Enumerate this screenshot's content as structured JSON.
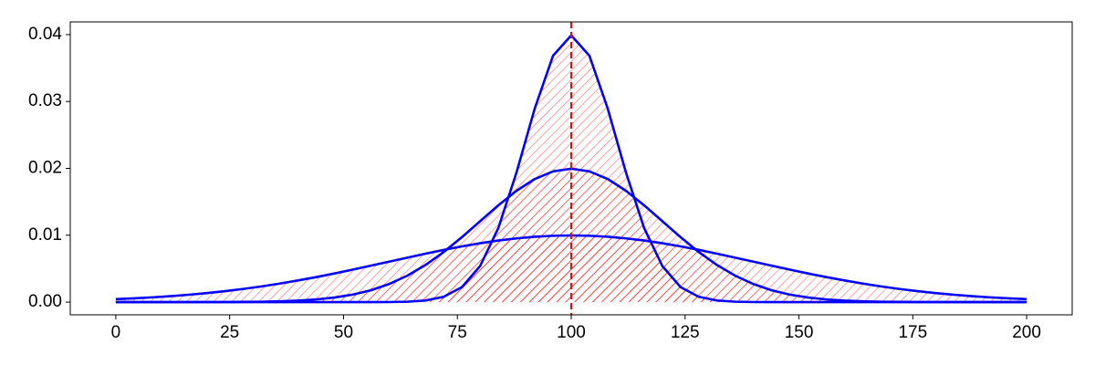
{
  "chart_data": {
    "type": "line",
    "x": [
      0,
      4,
      8,
      12,
      16,
      20,
      24,
      28,
      32,
      36,
      40,
      44,
      48,
      52,
      56,
      60,
      64,
      68,
      72,
      76,
      80,
      84,
      88,
      92,
      96,
      100,
      104,
      108,
      112,
      116,
      120,
      124,
      128,
      132,
      136,
      140,
      144,
      148,
      152,
      156,
      160,
      164,
      168,
      172,
      176,
      180,
      184,
      188,
      192,
      196,
      200
    ],
    "series": [
      {
        "color": "#0000ff",
        "values": [
          0,
          0,
          0,
          0,
          0,
          0,
          0,
          0,
          0,
          0,
          0,
          0,
          0,
          0,
          0,
          1e-05,
          6e-05,
          0.00024,
          0.00079,
          0.00224,
          0.0054,
          0.01109,
          0.01942,
          0.02897,
          0.03683,
          0.03989,
          0.03683,
          0.02897,
          0.01942,
          0.01109,
          0.0054,
          0.00224,
          0.00079,
          0.00024,
          6e-05,
          1e-05,
          0,
          0,
          0,
          0,
          0,
          0,
          0,
          0,
          0,
          0,
          0,
          0,
          0,
          0,
          0
        ]
      },
      {
        "color": "#0000ff",
        "values": [
          0,
          0,
          0,
          0,
          0,
          1e-05,
          1e-05,
          3e-05,
          6e-05,
          0.00012,
          0.00022,
          0.0004,
          0.00068,
          0.00112,
          0.00177,
          0.0027,
          0.00395,
          0.00555,
          0.00749,
          0.00971,
          0.0121,
          0.01448,
          0.01666,
          0.01841,
          0.01955,
          0.01995,
          0.01955,
          0.01841,
          0.01666,
          0.01448,
          0.0121,
          0.00971,
          0.00749,
          0.00555,
          0.00395,
          0.0027,
          0.00177,
          0.00112,
          0.00068,
          0.0004,
          0.00022,
          0.00012,
          6e-05,
          3e-05,
          1e-05,
          1e-05,
          0,
          0,
          0,
          0,
          0
        ]
      },
      {
        "color": "#0000ff",
        "values": [
          0.00044,
          0.00056,
          0.00071,
          0.00089,
          0.0011,
          0.00135,
          0.00164,
          0.00197,
          0.00235,
          0.00277,
          0.00324,
          0.00374,
          0.00428,
          0.00485,
          0.00545,
          0.00605,
          0.00665,
          0.00724,
          0.00781,
          0.00833,
          0.0088,
          0.00921,
          0.00953,
          0.00978,
          0.00992,
          0.00997,
          0.00992,
          0.00978,
          0.00953,
          0.00921,
          0.0088,
          0.00833,
          0.00781,
          0.00724,
          0.00665,
          0.00605,
          0.00545,
          0.00485,
          0.00428,
          0.00374,
          0.00324,
          0.00277,
          0.00235,
          0.00197,
          0.00164,
          0.00135,
          0.0011,
          0.00089,
          0.00071,
          0.00056,
          0.00044
        ]
      }
    ],
    "fill_color": "#ff0000",
    "hatch": true,
    "vline": {
      "x": 100,
      "color": "#ff0000",
      "dashed": true
    },
    "xlim": [
      -10,
      210
    ],
    "xticks": [
      0,
      25,
      50,
      75,
      100,
      125,
      150,
      175,
      200
    ],
    "ylim": [
      -0.0019,
      0.0419
    ],
    "yticks": [
      {
        "value": 0,
        "label": "0.00"
      },
      0.01,
      0.02,
      0.03,
      0.04
    ],
    "grid": false
  }
}
